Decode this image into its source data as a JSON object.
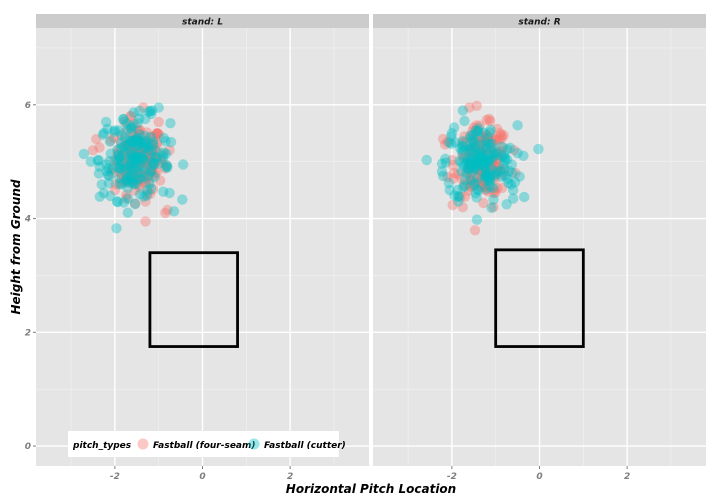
{
  "chart_data": {
    "type": "scatter",
    "xlabel": "Horizontal Pitch Location",
    "ylabel": "Height from Ground",
    "xlim": [
      -3.8,
      3.8
    ],
    "ylim": [
      -0.35,
      7.35
    ],
    "x_ticks": [
      -2,
      0,
      2
    ],
    "x_tick_labels": [
      "-2",
      "0",
      "2"
    ],
    "y_ticks": [
      0,
      2,
      4,
      6
    ],
    "y_tick_labels": [
      "0",
      "2",
      "4",
      "6"
    ],
    "grid": true,
    "legend": {
      "title": "pitch_types",
      "placement": "bottom-left",
      "entries": [
        {
          "label": "Fastball (four-seam)",
          "color": "#F8766D"
        },
        {
          "label": "Fastball (cutter)",
          "color": "#00BFC4"
        }
      ]
    },
    "panels": [
      {
        "strip": "stand: L",
        "strike_zone": {
          "x": [
            -1.2,
            0.8
          ],
          "y": [
            1.75,
            3.4
          ]
        },
        "series": [
          {
            "name": "Fastball (four-seam)",
            "color": "#F8766D",
            "center": [
              -1.45,
              5.05
            ],
            "spread": [
              0.28,
              0.3
            ],
            "count": 190,
            "points": [
              [
                -2.5,
                5.2
              ],
              [
                -2.35,
                5.25
              ],
              [
                -1.35,
                5.95
              ],
              [
                -1.3,
                3.95
              ],
              [
                -1.3,
                4.3
              ],
              [
                -0.8,
                4.15
              ],
              [
                -0.85,
                4.1
              ],
              [
                -0.75,
                5.2
              ],
              [
                -1.0,
                5.7
              ],
              [
                -1.65,
                5.8
              ],
              [
                -1.45,
                5.55
              ],
              [
                -2.0,
                4.5
              ]
            ]
          },
          {
            "name": "Fastball (cutter)",
            "color": "#00BFC4",
            "center": [
              -1.55,
              5.05
            ],
            "spread": [
              0.4,
              0.36
            ],
            "count": 170,
            "points": [
              [
                -2.2,
                5.7
              ],
              [
                -2.0,
                5.55
              ],
              [
                -1.0,
                5.95
              ],
              [
                -1.15,
                5.9
              ],
              [
                -2.25,
                4.45
              ],
              [
                -2.3,
                4.6
              ],
              [
                -2.55,
                5.0
              ],
              [
                -0.75,
                4.45
              ],
              [
                -0.8,
                4.9
              ],
              [
                -1.7,
                4.35
              ],
              [
                -1.95,
                4.3
              ],
              [
                -1.8,
                5.75
              ]
            ]
          }
        ]
      },
      {
        "strip": "stand: R",
        "strike_zone": {
          "x": [
            -1.0,
            1.0
          ],
          "y": [
            1.75,
            3.45
          ]
        },
        "series": [
          {
            "name": "Fastball (four-seam)",
            "color": "#F8766D",
            "center": [
              -1.3,
              5.0
            ],
            "spread": [
              0.3,
              0.3
            ],
            "count": 170,
            "points": [
              [
                -2.1,
                5.35
              ],
              [
                -2.2,
                5.4
              ],
              [
                -1.6,
                5.95
              ],
              [
                -1.5,
                5.6
              ],
              [
                -1.15,
                5.75
              ],
              [
                -0.9,
                5.5
              ],
              [
                -1.05,
                4.2
              ],
              [
                -1.75,
                4.2
              ],
              [
                -0.55,
                4.8
              ],
              [
                -1.95,
                4.8
              ],
              [
                -1.3,
                5.45
              ],
              [
                -0.8,
                4.85
              ]
            ]
          },
          {
            "name": "Fastball (cutter)",
            "color": "#00BFC4",
            "center": [
              -1.35,
              4.95
            ],
            "spread": [
              0.42,
              0.34
            ],
            "count": 160,
            "points": [
              [
                -1.75,
                5.9
              ],
              [
                -1.45,
                5.55
              ],
              [
                -2.0,
                5.5
              ],
              [
                -2.2,
                4.75
              ],
              [
                -2.05,
                4.5
              ],
              [
                -1.85,
                4.3
              ],
              [
                -0.5,
                5.15
              ],
              [
                -0.6,
                4.35
              ],
              [
                -0.75,
                4.25
              ],
              [
                -2.15,
                5.05
              ],
              [
                -1.95,
                5.6
              ],
              [
                -0.6,
                4.5
              ]
            ]
          }
        ]
      }
    ]
  }
}
